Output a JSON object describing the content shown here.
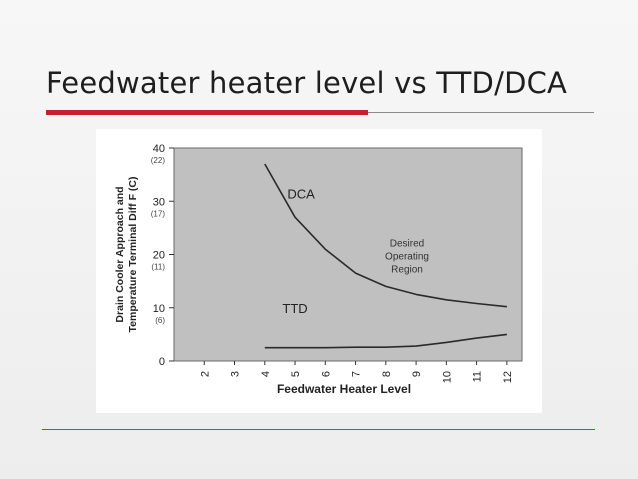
{
  "slide": {
    "title": "Feedwater heater level vs TTD/DCA"
  },
  "colors": {
    "accent_red": "#c8202a",
    "plot_background": "#c0c0c0",
    "line": "#2a2a2a"
  },
  "chart_data": {
    "type": "line",
    "title": "",
    "xlabel": "Feedwater Heater Level",
    "ylabel_lines": [
      "Drain Cooler Approach and",
      "Temperature Terminal Diff  F (C)"
    ],
    "xlim": [
      1,
      12.5
    ],
    "ylim": [
      0,
      40
    ],
    "x_ticks": [
      2,
      3,
      4,
      5,
      6,
      7,
      8,
      9,
      10,
      11,
      12
    ],
    "y_ticks": [
      {
        "value": 40,
        "label": "40",
        "sublabel": "(22)"
      },
      {
        "value": 30,
        "label": "30",
        "sublabel": "(17)"
      },
      {
        "value": 20,
        "label": "20",
        "sublabel": "(11)"
      },
      {
        "value": 10,
        "label": "10",
        "sublabel": "(6)"
      },
      {
        "value": 0,
        "label": "0",
        "sublabel": ""
      }
    ],
    "grid": false,
    "series": [
      {
        "name": "DCA",
        "x": [
          4,
          5,
          6,
          7,
          8,
          9,
          10,
          11,
          12
        ],
        "y": [
          37,
          27,
          21,
          16.5,
          14,
          12.5,
          11.5,
          10.8,
          10.2
        ]
      },
      {
        "name": "TTD",
        "x": [
          4,
          5,
          6,
          7,
          8,
          9,
          10,
          11,
          12
        ],
        "y": [
          2.5,
          2.5,
          2.5,
          2.6,
          2.6,
          2.8,
          3.5,
          4.3,
          5
        ]
      }
    ],
    "annotations": [
      {
        "text": "DCA",
        "at": [
          5.2,
          30.5
        ]
      },
      {
        "text": "TTD",
        "at": [
          5,
          9
        ]
      },
      {
        "text_lines": [
          "Desired",
          "Operating",
          "Region"
        ],
        "at": [
          8.7,
          21.5
        ]
      }
    ]
  }
}
